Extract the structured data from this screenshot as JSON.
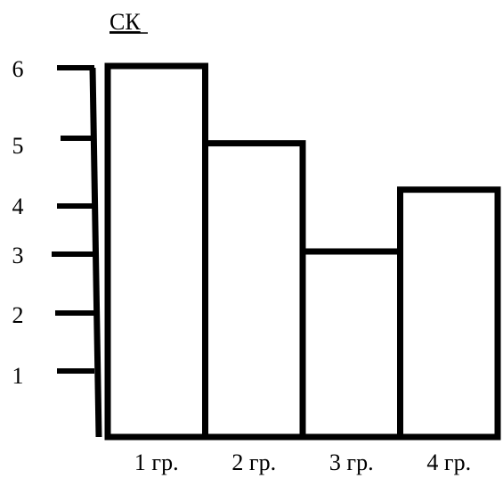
{
  "chart_data": {
    "type": "bar",
    "title": "",
    "ylabel": "СК",
    "xlabel": "",
    "categories": [
      "1 гр.",
      "2 гр.",
      "3 гр.",
      "4 гр."
    ],
    "values": [
      6,
      4.75,
      3,
      4
    ],
    "yticks": [
      "1",
      "2",
      "3",
      "4",
      "5",
      "6"
    ],
    "ylim": [
      0,
      6
    ],
    "grid": false,
    "legend": "none",
    "colors": {
      "stroke": "#000000",
      "fill": "#ffffff"
    }
  }
}
